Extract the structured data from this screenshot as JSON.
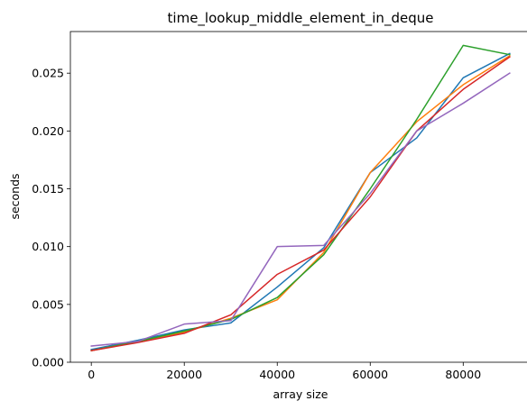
{
  "chart_data": {
    "type": "line",
    "title": "time_lookup_middle_element_in_deque",
    "xlabel": "array size",
    "ylabel": "seconds",
    "xlim": [
      -4500,
      94500
    ],
    "ylim": [
      0,
      0.0286
    ],
    "grid": false,
    "legend": "none",
    "x": [
      0,
      10000,
      20000,
      30000,
      40000,
      50000,
      60000,
      70000,
      80000,
      90000
    ],
    "x_ticks": [
      {
        "value": 0,
        "label": "0"
      },
      {
        "value": 20000,
        "label": "20000"
      },
      {
        "value": 40000,
        "label": "40000"
      },
      {
        "value": 60000,
        "label": "60000"
      },
      {
        "value": 80000,
        "label": "80000"
      }
    ],
    "y_ticks": [
      {
        "value": 0.0,
        "label": "0.000"
      },
      {
        "value": 0.005,
        "label": "0.005"
      },
      {
        "value": 0.01,
        "label": "0.010"
      },
      {
        "value": 0.015,
        "label": "0.015"
      },
      {
        "value": 0.02,
        "label": "0.020"
      },
      {
        "value": 0.025,
        "label": "0.025"
      }
    ],
    "series": [
      {
        "color": "#1f77b4",
        "values": [
          0.0011,
          0.0019,
          0.0028,
          0.0034,
          0.0065,
          0.0099,
          0.0164,
          0.0194,
          0.0246,
          0.0267
        ]
      },
      {
        "color": "#ff7f0e",
        "values": [
          0.001,
          0.0018,
          0.0026,
          0.0038,
          0.0054,
          0.0095,
          0.0164,
          0.0208,
          0.024,
          0.0265
        ]
      },
      {
        "color": "#2ca02c",
        "values": [
          0.001,
          0.0018,
          0.0027,
          0.0037,
          0.0056,
          0.0093,
          0.015,
          0.021,
          0.0274,
          0.0266
        ]
      },
      {
        "color": "#d62728",
        "values": [
          0.001,
          0.0017,
          0.0025,
          0.0041,
          0.0076,
          0.0097,
          0.0143,
          0.02,
          0.0236,
          0.0264
        ]
      },
      {
        "color": "#9467bd",
        "values": [
          0.0014,
          0.0018,
          0.0033,
          0.0036,
          0.01,
          0.0101,
          0.0146,
          0.02,
          0.0224,
          0.025
        ]
      }
    ]
  }
}
